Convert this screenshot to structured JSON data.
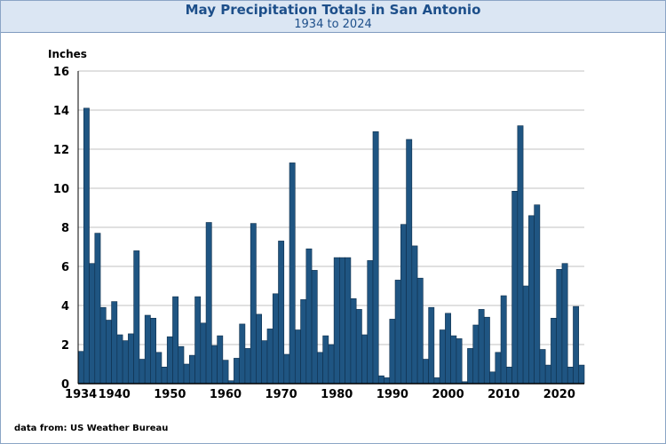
{
  "header": {
    "title": "May Precipitation Totals in San Antonio",
    "subtitle": "1934 to 2024"
  },
  "source": "data from:  US Weather Bureau",
  "colors": {
    "bar_fill": "#1f5582",
    "bar_stroke": "#0f2f4c",
    "grid": "#c0c0c0",
    "header_bg": "#dbe6f3",
    "title_text": "#1d4f8a"
  },
  "chart_data": {
    "type": "bar",
    "title": "May Precipitation Totals in San Antonio",
    "subtitle": "1934 to 2024",
    "ylabel": "Inches",
    "xlabel": "",
    "ylim": [
      0,
      16
    ],
    "yticks": [
      0,
      2,
      4,
      6,
      8,
      10,
      12,
      14,
      16
    ],
    "xticks": [
      "1934",
      "1940",
      "1950",
      "1960",
      "1970",
      "1980",
      "1990",
      "2000",
      "2010",
      "2020"
    ],
    "grid": true,
    "x_start": 1934,
    "x": [
      1934,
      1935,
      1936,
      1937,
      1938,
      1939,
      1940,
      1941,
      1942,
      1943,
      1944,
      1945,
      1946,
      1947,
      1948,
      1949,
      1950,
      1951,
      1952,
      1953,
      1954,
      1955,
      1956,
      1957,
      1958,
      1959,
      1960,
      1961,
      1962,
      1963,
      1964,
      1965,
      1966,
      1967,
      1968,
      1969,
      1970,
      1971,
      1972,
      1973,
      1974,
      1975,
      1976,
      1977,
      1978,
      1979,
      1980,
      1981,
      1982,
      1983,
      1984,
      1985,
      1986,
      1987,
      1988,
      1989,
      1990,
      1991,
      1992,
      1993,
      1994,
      1995,
      1996,
      1997,
      1998,
      1999,
      2000,
      2001,
      2002,
      2003,
      2004,
      2005,
      2006,
      2007,
      2008,
      2009,
      2010,
      2011,
      2012,
      2013,
      2014,
      2015,
      2016,
      2017,
      2018,
      2019,
      2020,
      2021,
      2022,
      2023,
      2024
    ],
    "values": [
      1.65,
      14.1,
      6.15,
      7.7,
      3.9,
      3.25,
      4.2,
      2.5,
      2.2,
      2.55,
      6.8,
      1.25,
      3.5,
      3.35,
      1.6,
      0.85,
      2.4,
      4.45,
      1.9,
      1.0,
      1.45,
      4.45,
      3.1,
      8.25,
      1.95,
      2.45,
      1.2,
      0.15,
      1.3,
      3.05,
      1.8,
      8.2,
      3.55,
      2.2,
      2.8,
      4.6,
      7.3,
      1.5,
      11.3,
      2.75,
      4.3,
      6.9,
      5.8,
      1.6,
      2.45,
      2.0,
      6.45,
      6.45,
      6.45,
      4.35,
      3.8,
      2.5,
      6.3,
      12.9,
      0.4,
      0.3,
      3.3,
      5.3,
      8.15,
      12.5,
      7.05,
      5.4,
      1.25,
      3.9,
      0.3,
      2.75,
      3.6,
      2.45,
      2.3,
      0.1,
      1.8,
      3.0,
      3.8,
      3.4,
      0.6,
      1.6,
      4.5,
      0.85,
      9.85,
      13.2,
      5.0,
      8.6,
      9.15,
      1.75,
      0.95,
      3.35,
      5.85,
      6.15,
      0.85,
      3.95,
      0.95
    ]
  }
}
